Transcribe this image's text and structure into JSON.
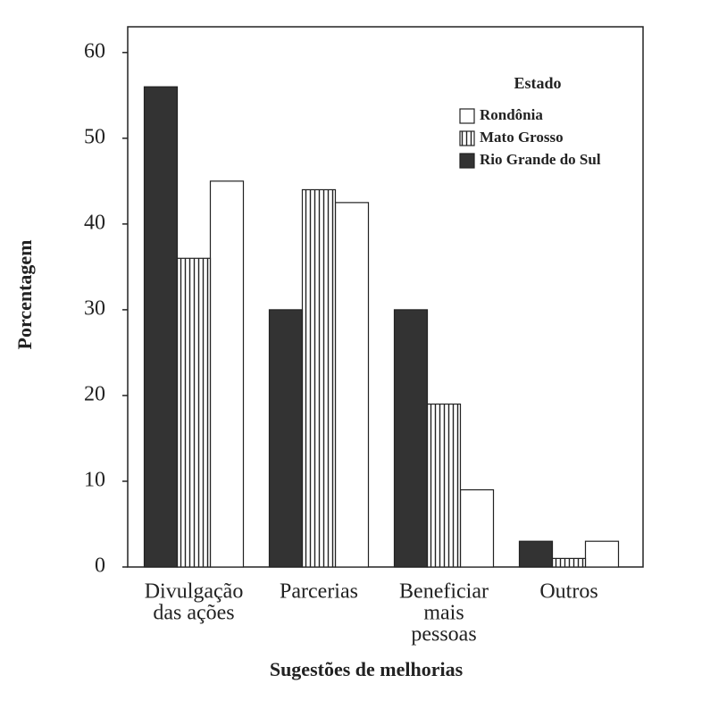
{
  "chart_data": {
    "type": "bar",
    "x_label": "Sugestões de melhorias",
    "y_label": "Porcentagem",
    "legend_title": "Estado",
    "categories": [
      [
        "Divulgação",
        "das ações"
      ],
      [
        "Parcerias"
      ],
      [
        "Beneficiar",
        "mais",
        "pessoas"
      ],
      [
        "Outros"
      ]
    ],
    "series": [
      {
        "name": "Rondônia",
        "color": "#ffffff",
        "values": [
          45,
          42.5,
          9,
          3
        ]
      },
      {
        "name": "Mato Grosso",
        "color": "#ffffff",
        "pattern": "vertical-stripes",
        "values": [
          36,
          44,
          19,
          1
        ]
      },
      {
        "name": "Rio Grande do Sul",
        "color": "#333333",
        "values": [
          56,
          30,
          30,
          3
        ]
      }
    ],
    "ylim": [
      0,
      63
    ],
    "yticks": [
      0,
      10,
      20,
      30,
      40,
      50,
      60
    ]
  }
}
